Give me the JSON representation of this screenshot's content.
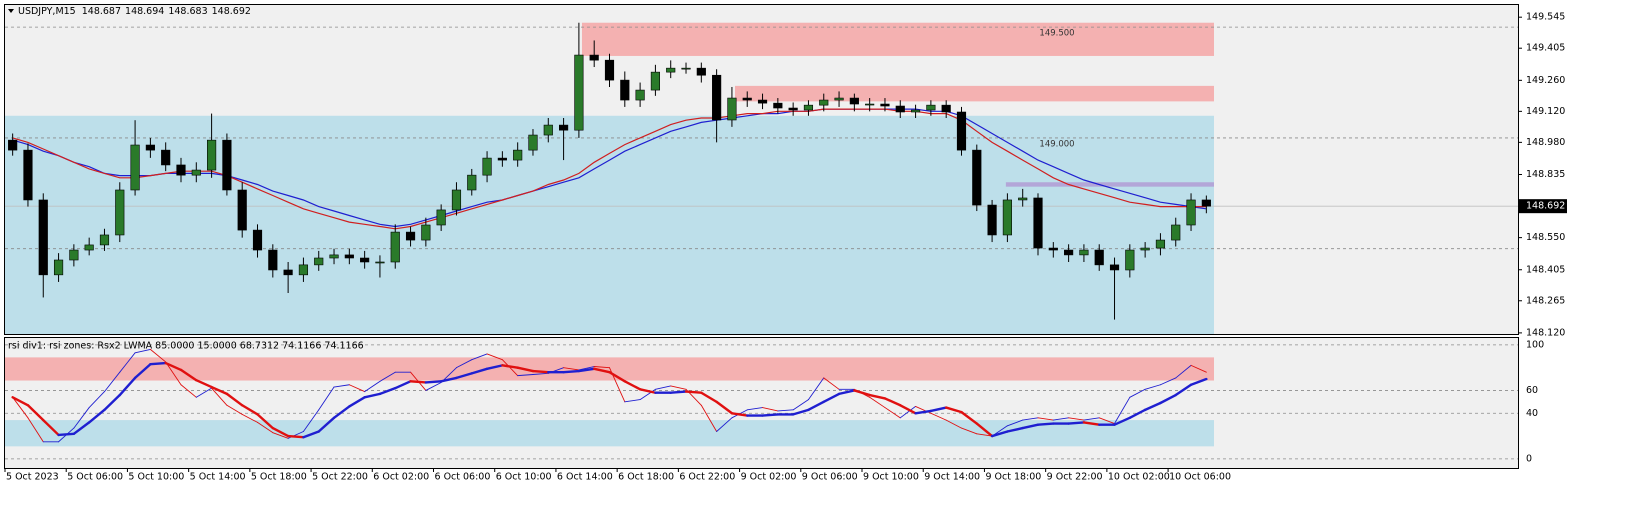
{
  "chart_data": [
    {
      "type": "candlestick",
      "symbol": "USDJPY,M15",
      "quote": [
        148.687,
        148.694,
        148.683,
        148.692
      ],
      "categories": [
        "5 Oct 2023",
        null,
        null,
        null,
        "5 Oct 06:00",
        null,
        null,
        null,
        "5 Oct 10:00",
        null,
        null,
        null,
        "5 Oct 14:00",
        null,
        null,
        null,
        "5 Oct 18:00",
        null,
        null,
        null,
        "5 Oct 22:00",
        null,
        null,
        null,
        "6 Oct 02:00",
        null,
        null,
        null,
        "6 Oct 06:00",
        null,
        null,
        null,
        "6 Oct 10:00",
        null,
        null,
        null,
        "6 Oct 14:00",
        null,
        null,
        null,
        "6 Oct 18:00",
        null,
        null,
        null,
        "6 Oct 22:00",
        null,
        null,
        null,
        "9 Oct 02:00",
        null,
        null,
        null,
        "9 Oct 06:00",
        null,
        null,
        null,
        "9 Oct 10:00",
        null,
        null,
        null,
        "9 Oct 14:00",
        null,
        null,
        null,
        "9 Oct 18:00",
        null,
        null,
        null,
        "9 Oct 22:00",
        null,
        null,
        null,
        "10 Oct 02:00",
        null,
        null,
        null,
        "10 Oct 06:00",
        null,
        null
      ],
      "open": [
        148.99,
        148.945,
        148.72,
        148.382,
        148.449,
        148.494,
        148.517,
        148.562,
        148.765,
        148.968,
        148.945,
        148.878,
        148.832,
        148.855,
        148.99,
        148.765,
        148.584,
        148.494,
        148.404,
        148.382,
        148.427,
        148.458,
        148.472,
        148.458,
        148.44,
        148.44,
        148.575,
        148.539,
        148.607,
        148.675,
        148.765,
        148.832,
        148.909,
        148.9,
        148.945,
        149.013,
        149.058,
        149.035,
        149.374,
        149.351,
        149.261,
        149.171,
        149.216,
        149.297,
        149.315,
        149.315,
        149.283,
        149.081,
        149.18,
        149.171,
        149.157,
        149.135,
        149.126,
        149.148,
        149.171,
        149.18,
        149.153,
        149.153,
        149.144,
        149.117,
        149.126,
        149.148,
        149.117,
        148.945,
        148.697,
        148.562,
        148.72,
        148.729,
        148.503,
        148.494,
        148.472,
        148.494,
        148.427,
        148.404,
        148.494,
        148.503,
        148.539,
        148.607,
        148.72
      ],
      "high": [
        149.02,
        148.975,
        148.75,
        148.48,
        148.52,
        148.55,
        148.59,
        148.8,
        149.08,
        149.0,
        148.98,
        148.91,
        148.89,
        149.11,
        149.02,
        148.8,
        148.61,
        148.52,
        148.44,
        148.46,
        148.49,
        148.5,
        148.5,
        148.49,
        148.47,
        148.61,
        148.6,
        148.64,
        148.7,
        148.8,
        148.86,
        148.94,
        148.94,
        148.98,
        149.04,
        149.09,
        149.09,
        149.52,
        149.44,
        149.38,
        149.3,
        149.25,
        149.33,
        149.35,
        149.34,
        149.34,
        149.31,
        149.23,
        149.21,
        149.2,
        149.18,
        149.16,
        149.17,
        149.2,
        149.21,
        149.2,
        149.18,
        149.18,
        149.17,
        149.15,
        149.17,
        149.17,
        149.14,
        148.97,
        148.72,
        148.75,
        148.77,
        148.75,
        148.53,
        148.52,
        148.52,
        148.52,
        148.46,
        148.52,
        148.53,
        148.57,
        148.64,
        148.75,
        148.74
      ],
      "low": [
        148.92,
        148.69,
        148.28,
        148.35,
        148.42,
        148.47,
        148.49,
        148.53,
        148.74,
        148.91,
        148.85,
        148.8,
        148.8,
        148.82,
        148.74,
        148.55,
        148.46,
        148.37,
        148.3,
        148.35,
        148.4,
        148.43,
        148.43,
        148.41,
        148.37,
        148.41,
        148.51,
        148.51,
        148.58,
        148.65,
        148.74,
        148.8,
        148.87,
        148.87,
        148.92,
        148.98,
        148.9,
        149.0,
        149.32,
        149.23,
        149.14,
        149.14,
        149.19,
        149.27,
        149.29,
        149.25,
        148.98,
        149.05,
        149.14,
        149.13,
        149.11,
        149.1,
        149.1,
        149.12,
        149.14,
        149.12,
        149.12,
        149.12,
        149.09,
        149.09,
        149.1,
        149.09,
        148.92,
        148.67,
        148.53,
        148.53,
        148.69,
        148.47,
        148.46,
        148.44,
        148.44,
        148.4,
        148.18,
        148.37,
        148.46,
        148.47,
        148.51,
        148.58,
        148.66
      ],
      "close": [
        148.945,
        148.72,
        148.382,
        148.449,
        148.494,
        148.517,
        148.562,
        148.765,
        148.968,
        148.945,
        148.878,
        148.832,
        148.855,
        148.99,
        148.765,
        148.584,
        148.494,
        148.404,
        148.382,
        148.427,
        148.458,
        148.472,
        148.458,
        148.44,
        148.44,
        148.575,
        148.539,
        148.607,
        148.675,
        148.765,
        148.832,
        148.909,
        148.9,
        148.945,
        149.013,
        149.058,
        149.035,
        149.374,
        149.351,
        149.261,
        149.171,
        149.216,
        149.297,
        149.315,
        149.315,
        149.283,
        149.081,
        149.18,
        149.171,
        149.157,
        149.135,
        149.126,
        149.148,
        149.171,
        149.18,
        149.153,
        149.153,
        149.144,
        149.117,
        149.126,
        149.148,
        149.117,
        148.945,
        148.697,
        148.562,
        148.72,
        148.729,
        148.503,
        148.494,
        148.472,
        148.494,
        148.427,
        148.404,
        148.494,
        148.503,
        148.539,
        148.607,
        148.72,
        148.692
      ],
      "bull_color": "#2a7a2a",
      "bear_color": "#000000",
      "ma": [
        {
          "color": "#1f1fd0",
          "values": [
            148.99,
            148.97,
            148.94,
            148.92,
            148.89,
            148.87,
            148.84,
            148.83,
            148.83,
            148.83,
            148.84,
            148.84,
            148.84,
            148.84,
            148.83,
            148.81,
            148.79,
            148.76,
            148.74,
            148.72,
            148.69,
            148.67,
            148.65,
            148.63,
            148.61,
            148.6,
            148.61,
            148.63,
            148.65,
            148.67,
            148.69,
            148.71,
            148.72,
            148.74,
            148.76,
            148.78,
            148.8,
            148.82,
            148.86,
            148.9,
            148.94,
            148.97,
            149.0,
            149.03,
            149.05,
            149.07,
            149.08,
            149.09,
            149.1,
            149.11,
            149.11,
            149.12,
            149.12,
            149.13,
            149.13,
            149.13,
            149.13,
            149.13,
            149.13,
            149.13,
            149.12,
            149.12,
            149.1,
            149.06,
            149.02,
            148.98,
            148.94,
            148.9,
            148.87,
            148.84,
            148.81,
            148.79,
            148.77,
            148.75,
            148.73,
            148.71,
            148.7,
            148.69,
            148.68
          ]
        },
        {
          "color": "#d01f1f",
          "values": [
            149.0,
            148.98,
            148.95,
            148.92,
            148.89,
            148.86,
            148.84,
            148.82,
            148.82,
            148.83,
            148.84,
            148.85,
            148.85,
            148.85,
            148.83,
            148.8,
            148.77,
            148.74,
            148.71,
            148.68,
            148.66,
            148.64,
            148.62,
            148.61,
            148.6,
            148.59,
            148.6,
            148.62,
            148.64,
            148.66,
            148.68,
            148.7,
            148.72,
            148.74,
            148.76,
            148.79,
            148.81,
            148.84,
            148.89,
            148.93,
            148.97,
            149.0,
            149.03,
            149.06,
            149.08,
            149.09,
            149.09,
            149.1,
            149.11,
            149.11,
            149.12,
            149.12,
            149.12,
            149.13,
            149.13,
            149.13,
            149.13,
            149.13,
            149.12,
            149.12,
            149.11,
            149.11,
            149.08,
            149.03,
            148.98,
            148.94,
            148.9,
            148.86,
            148.82,
            148.79,
            148.77,
            148.75,
            148.73,
            148.71,
            148.7,
            148.69,
            148.69,
            148.69,
            148.69
          ]
        }
      ],
      "zones": [
        {
          "start": 0,
          "range": [
            148.115,
            149.1
          ],
          "color": "#bddfea"
        },
        {
          "start": 37.7,
          "range": [
            149.37,
            149.52
          ],
          "color": "#f4b1b1"
        },
        {
          "start": 47.7,
          "range": [
            149.165,
            149.235
          ],
          "color": "#f4b1b1"
        },
        {
          "start": 65.4,
          "range": [
            148.78,
            148.8
          ],
          "color": "#b3a6d8"
        }
      ],
      "levels": [
        {
          "value": 149.5,
          "label": "149.500"
        },
        {
          "value": 149.0,
          "label": "149.000"
        }
      ],
      "guide_levels": [
        148.5
      ],
      "last": 148.692,
      "ylim": [
        148.115,
        149.6
      ],
      "yticks": [
        149.545,
        149.405,
        {
          "value": 149.26,
          "label": "149.260"
        },
        {
          "value": 149.12,
          "label": "149.120"
        },
        {
          "value": 148.98,
          "label": "148.980"
        },
        148.835,
        {
          "value": 148.55,
          "label": "148.550"
        },
        148.405,
        148.265,
        {
          "value": 148.12,
          "label": "148.120"
        }
      ]
    },
    {
      "type": "line",
      "title": "rsi div1: rsi zones: Rsx2 LWMA 85.0000 15.0000 68.7312 74.1166 74.1166",
      "rise_color": "#1f1fd0",
      "fall_color": "#e01010",
      "series": [
        {
          "width": 0.9,
          "values": [
            54,
            36,
            15,
            15,
            27,
            45,
            59,
            76,
            93,
            96,
            85,
            65,
            54,
            62,
            47,
            39,
            32,
            23,
            18,
            24,
            43,
            63,
            65,
            59,
            68,
            76,
            76,
            60,
            67,
            80,
            87,
            92,
            87,
            73,
            74,
            75,
            80,
            78,
            81,
            80,
            50,
            52,
            61,
            64,
            61,
            47,
            24,
            36,
            43,
            45,
            42,
            43,
            52,
            71,
            61,
            61,
            54,
            45,
            36,
            46,
            40,
            34,
            27,
            22,
            20,
            29,
            34,
            36,
            34,
            36,
            34,
            36,
            31,
            54,
            61,
            65,
            71,
            82,
            76
          ]
        },
        {
          "width": 2.4,
          "values": [
            54,
            47,
            34,
            21,
            22,
            32,
            43,
            56,
            71,
            83,
            84,
            78,
            69,
            63,
            57,
            47,
            39,
            27,
            20,
            19,
            24,
            36,
            46,
            54,
            57,
            62,
            68,
            67,
            68,
            71,
            75,
            79,
            82,
            80,
            77,
            76,
            76,
            77,
            79,
            76,
            68,
            61,
            58,
            58,
            59,
            58,
            50,
            40,
            38,
            38,
            39,
            39,
            43,
            50,
            57,
            60,
            56,
            53,
            47,
            40,
            42,
            45,
            41,
            31,
            20,
            24,
            27,
            30,
            31,
            31,
            32,
            30,
            30,
            36,
            43,
            49,
            56,
            65,
            70
          ]
        }
      ],
      "zones": [
        {
          "range": [
            68.7,
            89
          ],
          "color": "#f4b1b1"
        },
        {
          "range": [
            11,
            34
          ],
          "color": "#bddfea"
        }
      ],
      "ylim": [
        -8,
        106
      ],
      "yticks": [
        100,
        60,
        40,
        0
      ]
    }
  ]
}
